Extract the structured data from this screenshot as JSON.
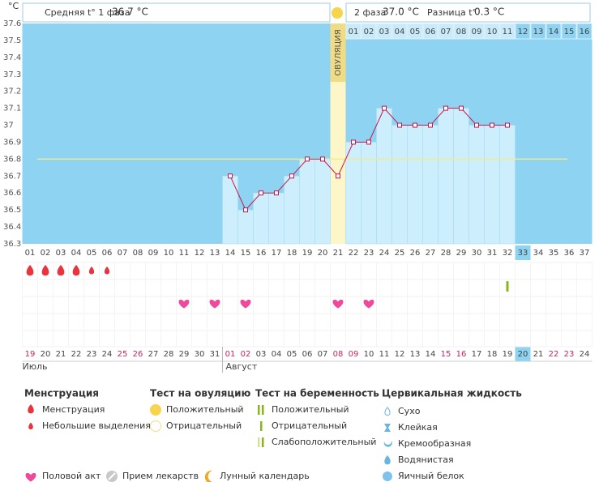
{
  "chart_data": {
    "type": "line",
    "y_unit": "°C",
    "header": {
      "phase1_label": "Средняя t° 1 фаза",
      "phase1_value": "36.7 °C",
      "phase2_label": "2 фаза",
      "phase2_value": "37.0 °C",
      "diff_label": "Разница t°",
      "diff_value": "0.3 °C"
    },
    "categories": [
      "01",
      "02",
      "03",
      "04",
      "05",
      "06",
      "07",
      "08",
      "09",
      "10",
      "11",
      "12",
      "13",
      "14",
      "15",
      "16",
      "17",
      "18",
      "19",
      "20",
      "21",
      "22",
      "23",
      "24",
      "25",
      "26",
      "27",
      "28",
      "29",
      "30",
      "31",
      "32",
      "33",
      "34",
      "35",
      "36",
      "37"
    ],
    "values": [
      null,
      null,
      null,
      null,
      null,
      null,
      null,
      null,
      null,
      null,
      null,
      null,
      null,
      36.7,
      36.5,
      36.6,
      36.6,
      36.7,
      36.8,
      36.8,
      36.7,
      36.9,
      36.9,
      37.1,
      37.0,
      37.0,
      37.0,
      37.1,
      37.1,
      37.0,
      37.0,
      37.0,
      null,
      null,
      null,
      null,
      null
    ],
    "color": "#c8174d",
    "ylim": [
      36.3,
      37.6
    ],
    "yticks": [
      37.6,
      37.5,
      37.4,
      37.3,
      37.2,
      37.1,
      37,
      36.9,
      36.8,
      36.7,
      36.6,
      36.5,
      36.4,
      36.3
    ],
    "coverline": 36.8,
    "ovulation_day": 21,
    "ovulation_label": "ОВУЛЯЦИЯ",
    "luteal_days": [
      "01",
      "02",
      "03",
      "04",
      "05",
      "06",
      "07",
      "08",
      "09",
      "10",
      "11",
      "12",
      "13",
      "14",
      "15",
      "16"
    ],
    "today_day": 33,
    "dates": [
      {
        "label": "19",
        "weekend": true
      },
      {
        "label": "20",
        "weekend": false
      },
      {
        "label": "21",
        "weekend": false
      },
      {
        "label": "22",
        "weekend": false
      },
      {
        "label": "23",
        "weekend": false
      },
      {
        "label": "24",
        "weekend": false
      },
      {
        "label": "25",
        "weekend": true
      },
      {
        "label": "26",
        "weekend": true
      },
      {
        "label": "27",
        "weekend": false
      },
      {
        "label": "28",
        "weekend": false
      },
      {
        "label": "29",
        "weekend": false
      },
      {
        "label": "30",
        "weekend": false
      },
      {
        "label": "31",
        "weekend": false
      },
      {
        "label": "01",
        "weekend": true
      },
      {
        "label": "02",
        "weekend": true
      },
      {
        "label": "03",
        "weekend": false
      },
      {
        "label": "04",
        "weekend": false
      },
      {
        "label": "05",
        "weekend": false
      },
      {
        "label": "06",
        "weekend": false
      },
      {
        "label": "07",
        "weekend": false
      },
      {
        "label": "08",
        "weekend": true
      },
      {
        "label": "09",
        "weekend": true
      },
      {
        "label": "10",
        "weekend": false
      },
      {
        "label": "11",
        "weekend": false
      },
      {
        "label": "12",
        "weekend": false
      },
      {
        "label": "13",
        "weekend": false
      },
      {
        "label": "14",
        "weekend": false
      },
      {
        "label": "15",
        "weekend": true
      },
      {
        "label": "16",
        "weekend": true
      },
      {
        "label": "17",
        "weekend": false
      },
      {
        "label": "18",
        "weekend": false
      },
      {
        "label": "19",
        "weekend": false
      },
      {
        "label": "20",
        "weekend": false
      },
      {
        "label": "21",
        "weekend": false
      },
      {
        "label": "22",
        "weekend": true
      },
      {
        "label": "23",
        "weekend": true
      },
      {
        "label": "24",
        "weekend": false
      }
    ],
    "months": [
      "Июль",
      "Август"
    ],
    "menstruation_days": [
      1,
      2,
      3,
      4
    ],
    "spotting_days": [
      5,
      6
    ],
    "intercourse_days": [
      11,
      13,
      15,
      21,
      23
    ],
    "pregnancy_test_negative_days": [
      32
    ]
  },
  "legend": {
    "menstruation": {
      "title": "Менструация",
      "items": [
        "Менструация",
        "Небольшие выделения"
      ]
    },
    "ovulation_test": {
      "title": "Тест на овуляцию",
      "items": [
        "Положительный",
        "Отрицательный"
      ]
    },
    "pregnancy_test": {
      "title": "Тест на беременность",
      "items": [
        "Положительный",
        "Отрицательный",
        "Слабоположительный"
      ]
    },
    "cervical_fluid": {
      "title": "Цервикальная жидкость",
      "items": [
        "Сухо",
        "Клейкая",
        "Кремообразная",
        "Водянистая",
        "Яичный белок"
      ]
    },
    "other": [
      "Половой акт",
      "Прием лекарств",
      "Лунный календарь"
    ]
  }
}
